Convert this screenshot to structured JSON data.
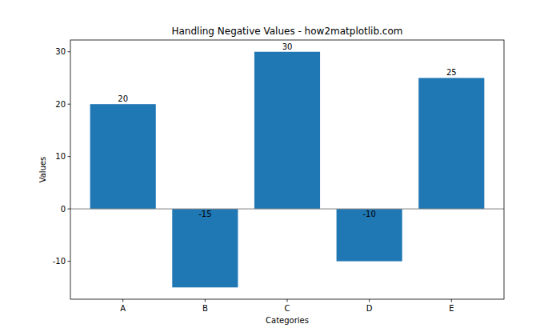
{
  "chart_data": {
    "type": "bar",
    "title": "Handling Negative Values - how2matplotlib.com",
    "x_label": "Categories",
    "y_label": "Values",
    "categories": [
      "A",
      "B",
      "C",
      "D",
      "E"
    ],
    "values": [
      20,
      -15,
      30,
      -10,
      25
    ],
    "color": "#1f77b4",
    "ylim": [
      -17.25,
      32.25
    ],
    "yticks": [
      -10,
      0,
      10,
      20,
      30
    ],
    "grid": false,
    "data_labels": true
  }
}
